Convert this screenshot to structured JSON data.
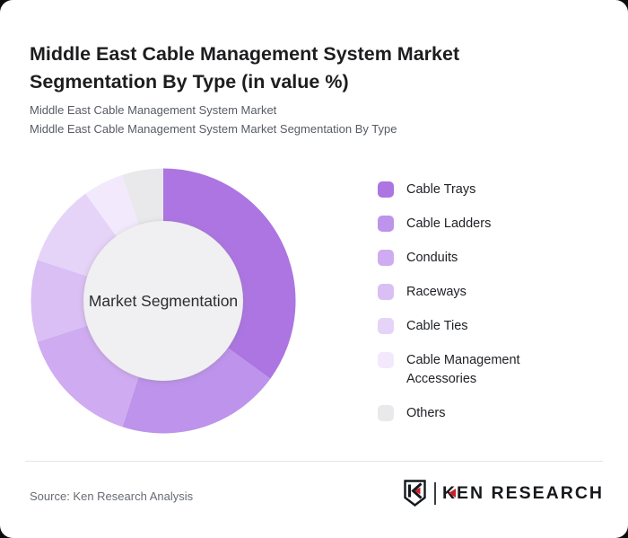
{
  "page": {
    "background": "#0c0c0c",
    "card_background": "#ffffff"
  },
  "header": {
    "title": "Middle East Cable Management System Market Segmentation By Type (in value %)",
    "subtitle_line1": "Middle East Cable Management System Market",
    "subtitle_line2": "Middle East Cable Management System Market Segmentation By Type"
  },
  "chart_data": {
    "type": "pie",
    "donut": true,
    "title": "Middle East Cable Management System Market Segmentation By Type (in value %)",
    "unit": "value %",
    "center_label": "Market Segmentation",
    "start_angle_deg": 0,
    "direction": "clockwise",
    "inner_radius_ratio": 0.6,
    "inner_circle_color": "#f0eff1",
    "legend_position": "right",
    "labels": [
      "Cable Trays",
      "Cable Ladders",
      "Conduits",
      "Raceways",
      "Cable Ties",
      "Cable Management Accessories",
      "Others"
    ],
    "values": [
      35,
      20,
      15,
      10,
      10,
      5,
      5
    ],
    "colors": [
      "#ac75e2",
      "#bd93ec",
      "#cfabf1",
      "#dabff4",
      "#e5d3f8",
      "#f2eafc",
      "#e9e8ea"
    ]
  },
  "legend": {
    "items": [
      {
        "label": "Cable Trays",
        "color": "#ac75e2"
      },
      {
        "label": "Cable Ladders",
        "color": "#bd93ec"
      },
      {
        "label": "Conduits",
        "color": "#cfabf1"
      },
      {
        "label": "Raceways",
        "color": "#dabff4"
      },
      {
        "label": "Cable Ties",
        "color": "#e5d3f8"
      },
      {
        "label": "Cable Management Accessories",
        "color": "#f2eafc"
      },
      {
        "label": "Others",
        "color": "#e9e8ea"
      }
    ]
  },
  "footer": {
    "source": "Source: Ken Research Analysis",
    "logo": {
      "brand": "KEN RESEARCH",
      "accent_color": "#c8202b",
      "text_color": "#17191c"
    }
  }
}
